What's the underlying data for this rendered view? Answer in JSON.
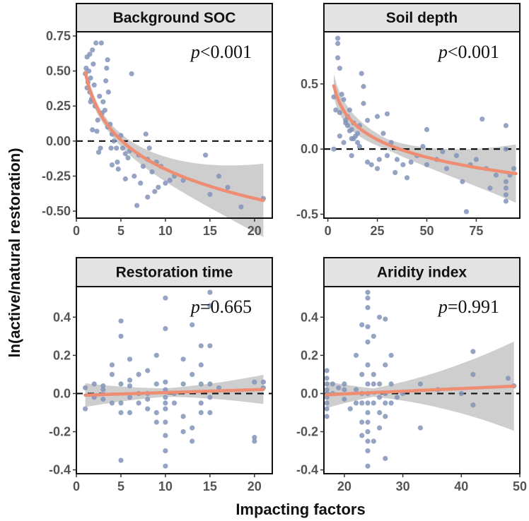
{
  "chart_data": [
    {
      "type": "scatter",
      "title": "Background SOC",
      "annotation": {
        "prefix": "p",
        "text": "<0.001"
      },
      "xlabel": "Impacting factors",
      "ylabel": "ln(active/natural restoration)",
      "xlim": [
        0,
        22
      ],
      "ylim": [
        -0.55,
        0.78
      ],
      "xticks": [
        0,
        5,
        10,
        15,
        20
      ],
      "yticks": [
        -0.5,
        -0.25,
        0,
        0.25,
        0.5,
        0.75
      ],
      "ytick_labels": [
        "-0.50",
        "-0.25",
        "0.00",
        "0.25",
        "0.50",
        "0.75"
      ],
      "reference_line_y": 0,
      "fit": "log",
      "points": [
        [
          1.0,
          0.48
        ],
        [
          1.1,
          0.52
        ],
        [
          1.2,
          0.6
        ],
        [
          1.3,
          0.42
        ],
        [
          1.4,
          0.5
        ],
        [
          1.5,
          0.35
        ],
        [
          1.6,
          0.45
        ],
        [
          1.7,
          0.3
        ],
        [
          1.8,
          0.65
        ],
        [
          1.9,
          0.55
        ],
        [
          2.0,
          0.4
        ],
        [
          2.1,
          0.25
        ],
        [
          1.5,
          0.62
        ],
        [
          2.2,
          0.7
        ],
        [
          2.3,
          0.07
        ],
        [
          1.8,
          0.08
        ],
        [
          2.5,
          -0.08
        ],
        [
          2.8,
          0.7
        ],
        [
          2.6,
          0.32
        ],
        [
          2.7,
          -0.05
        ],
        [
          3.0,
          0.28
        ],
        [
          3.2,
          0.22
        ],
        [
          3.5,
          0.1
        ],
        [
          3.8,
          0.12
        ],
        [
          4.0,
          0.05
        ],
        [
          4.2,
          0.0
        ],
        [
          3.5,
          0.58
        ],
        [
          3.4,
          0.52
        ],
        [
          3.3,
          0.43
        ],
        [
          3.6,
          0.35
        ],
        [
          4.5,
          -0.05
        ],
        [
          4.0,
          -0.17
        ],
        [
          5.0,
          0.04
        ],
        [
          5.2,
          -0.05
        ],
        [
          5.5,
          -0.09
        ],
        [
          5.5,
          -0.27
        ],
        [
          6.0,
          -0.07
        ],
        [
          6.5,
          -0.25
        ],
        [
          6.2,
          0.48
        ],
        [
          6.8,
          -0.46
        ],
        [
          7.0,
          -0.1
        ],
        [
          7.5,
          -0.18
        ],
        [
          7.8,
          0.05
        ],
        [
          8.0,
          -0.13
        ],
        [
          8.2,
          -0.05
        ],
        [
          8.5,
          -0.22
        ],
        [
          8.8,
          -0.36
        ],
        [
          9.0,
          -0.15
        ],
        [
          9.5,
          -0.18
        ],
        [
          10.0,
          -0.3
        ],
        [
          10.5,
          -0.28
        ],
        [
          11.0,
          -0.25
        ],
        [
          12.0,
          -0.28
        ],
        [
          14.5,
          -0.1
        ],
        [
          15.0,
          -0.38
        ],
        [
          16.0,
          -0.25
        ],
        [
          17.0,
          -0.33
        ],
        [
          18.5,
          -0.47
        ],
        [
          21.0,
          -0.41
        ],
        [
          4.6,
          -0.15
        ],
        [
          5.8,
          -0.12
        ],
        [
          7.2,
          -0.3
        ],
        [
          9.2,
          -0.33
        ],
        [
          8.0,
          -0.4
        ],
        [
          2.4,
          0.15
        ],
        [
          1.2,
          0.38
        ],
        [
          1.6,
          0.28
        ],
        [
          2.9,
          0.2
        ],
        [
          3.9,
          -0.05
        ],
        [
          4.7,
          -0.2
        ]
      ],
      "fit_line": {
        "a": 0.49,
        "b": -0.3,
        "x0": 1.0,
        "x1": 21.0
      },
      "band": {
        "c0": 0.035,
        "c1": 0.0045,
        "c2": 0.00045,
        "xc": 3
      }
    },
    {
      "type": "scatter",
      "title": "Soil depth",
      "annotation": {
        "prefix": "p",
        "text": "<0.001"
      },
      "xlabel": "Impacting factors",
      "ylabel": "ln(active/natural restoration)",
      "xlim": [
        -2,
        97
      ],
      "ylim": [
        -0.53,
        0.9
      ],
      "xticks": [
        0,
        25,
        50,
        75
      ],
      "yticks": [
        -0.5,
        0,
        0.5
      ],
      "ytick_labels": [
        "-0.5",
        "0.0",
        "0.5"
      ],
      "reference_line_y": 0,
      "fit": "log",
      "points": [
        [
          3,
          0.4
        ],
        [
          4,
          0.3
        ],
        [
          5,
          0.85
        ],
        [
          5,
          0.81
        ],
        [
          5,
          0.7
        ],
        [
          6,
          0.62
        ],
        [
          7,
          0.42
        ],
        [
          8,
          0.38
        ],
        [
          9,
          0.2
        ],
        [
          10,
          0.25
        ],
        [
          10,
          0.18
        ],
        [
          11,
          0.3
        ],
        [
          12,
          0.15
        ],
        [
          13,
          0.08
        ],
        [
          14,
          0.1
        ],
        [
          15,
          0.12
        ],
        [
          15,
          0.05
        ],
        [
          16,
          0.02
        ],
        [
          17,
          0.58
        ],
        [
          18,
          0.48
        ],
        [
          20,
          0.22
        ],
        [
          22,
          -0.12
        ],
        [
          25,
          0.25
        ],
        [
          25,
          -0.15
        ],
        [
          28,
          0.12
        ],
        [
          30,
          0.27
        ],
        [
          30,
          -0.05
        ],
        [
          32,
          0.05
        ],
        [
          35,
          -0.08
        ],
        [
          38,
          -0.12
        ],
        [
          40,
          -0.22
        ],
        [
          42,
          -0.1
        ],
        [
          45,
          -0.05
        ],
        [
          48,
          0.02
        ],
        [
          50,
          -0.12
        ],
        [
          50,
          0.15
        ],
        [
          55,
          -0.08
        ],
        [
          60,
          -0.15
        ],
        [
          65,
          -0.05
        ],
        [
          70,
          -0.48
        ],
        [
          72,
          -0.12
        ],
        [
          75,
          -0.08
        ],
        [
          78,
          0.23
        ],
        [
          80,
          -0.15
        ],
        [
          82,
          -0.3
        ],
        [
          85,
          -0.2
        ],
        [
          90,
          0.18
        ],
        [
          90,
          0.0
        ],
        [
          90,
          -0.25
        ],
        [
          90,
          -0.3
        ],
        [
          90,
          -0.35
        ],
        [
          90,
          -0.4
        ],
        [
          92,
          -0.2
        ],
        [
          94,
          -0.15
        ],
        [
          3,
          0.0
        ],
        [
          6,
          0.1
        ],
        [
          8,
          0.05
        ],
        [
          12,
          -0.05
        ],
        [
          20,
          -0.1
        ],
        [
          18,
          0.35
        ],
        [
          6,
          0.28
        ],
        [
          9,
          0.22
        ],
        [
          11,
          0.14
        ],
        [
          13,
          0.2
        ],
        [
          16,
          0.18
        ],
        [
          12,
          0.08
        ],
        [
          26,
          -0.08
        ],
        [
          34,
          -0.18
        ],
        [
          58,
          -0.02
        ],
        [
          68,
          -0.25
        ]
      ],
      "fit_line": {
        "a": 0.7,
        "b": -0.195,
        "x0": 3,
        "x1": 95
      },
      "band": {
        "c0": 0.04,
        "c1": 0.0012,
        "c2": 2.5e-05,
        "xc": 30
      }
    },
    {
      "type": "scatter",
      "title": "Restoration time",
      "annotation": {
        "prefix": "p",
        "text": "=0.665"
      },
      "xlabel": "Impacting factors",
      "ylabel": "ln(active/natural restoration)",
      "xlim": [
        0,
        22
      ],
      "ylim": [
        -0.42,
        0.56
      ],
      "xticks": [
        0,
        5,
        10,
        15,
        20
      ],
      "yticks": [
        -0.4,
        -0.2,
        0,
        0.2,
        0.4
      ],
      "ytick_labels": [
        "-0.4",
        "-0.2",
        "0.0",
        "0.2",
        "0.4"
      ],
      "reference_line_y": 0,
      "fit": "linear",
      "points": [
        [
          1,
          0.03
        ],
        [
          1,
          -0.08
        ],
        [
          2,
          -0.02
        ],
        [
          2,
          0.05
        ],
        [
          3,
          0.04
        ],
        [
          3,
          -0.03
        ],
        [
          4,
          0.1
        ],
        [
          4,
          0.15
        ],
        [
          4,
          -0.05
        ],
        [
          5,
          0.38
        ],
        [
          5,
          0.3
        ],
        [
          5,
          -0.35
        ],
        [
          5,
          0.05
        ],
        [
          5,
          -0.05
        ],
        [
          5,
          -0.1
        ],
        [
          6,
          0.07
        ],
        [
          6,
          -0.02
        ],
        [
          6,
          -0.1
        ],
        [
          6,
          0.18
        ],
        [
          7,
          0.1
        ],
        [
          7,
          0.0
        ],
        [
          7,
          -0.05
        ],
        [
          8,
          0.12
        ],
        [
          8,
          -0.03
        ],
        [
          8,
          -0.08
        ],
        [
          9,
          0.05
        ],
        [
          9,
          -0.1
        ],
        [
          9,
          -0.15
        ],
        [
          10,
          0.5
        ],
        [
          10,
          0.34
        ],
        [
          10,
          0.06
        ],
        [
          10,
          0.02
        ],
        [
          10,
          -0.02
        ],
        [
          10,
          -0.05
        ],
        [
          10,
          -0.08
        ],
        [
          10,
          -0.15
        ],
        [
          10,
          -0.22
        ],
        [
          10,
          -0.3
        ],
        [
          10,
          -0.38
        ],
        [
          11,
          0.0
        ],
        [
          11,
          -0.05
        ],
        [
          12,
          0.18
        ],
        [
          12,
          0.05
        ],
        [
          12,
          -0.2
        ],
        [
          13,
          0.36
        ],
        [
          13,
          0.1
        ],
        [
          13,
          -0.18
        ],
        [
          14,
          0.05
        ],
        [
          14,
          -0.05
        ],
        [
          14,
          -0.1
        ],
        [
          14,
          0.15
        ],
        [
          15,
          0.53
        ],
        [
          15,
          0.46
        ],
        [
          15,
          0.25
        ],
        [
          15,
          0.05
        ],
        [
          15,
          -0.02
        ],
        [
          15,
          -0.1
        ],
        [
          16,
          0.03
        ],
        [
          20,
          0.06
        ],
        [
          20,
          -0.23
        ],
        [
          20,
          -0.25
        ],
        [
          21,
          0.03
        ],
        [
          21,
          0.06
        ],
        [
          3,
          0.02
        ],
        [
          6,
          0.04
        ],
        [
          8,
          0.0
        ],
        [
          12,
          -0.12
        ],
        [
          13,
          -0.25
        ],
        [
          14,
          0.25
        ],
        [
          9,
          0.2
        ]
      ],
      "fit_line": {
        "a": -0.01,
        "b": 0.0015,
        "x0": 1,
        "x1": 21
      },
      "band": {
        "c0": 0.022,
        "c1": 0.0022,
        "c2": 0.00025,
        "xc": 10
      }
    },
    {
      "type": "scatter",
      "title": "Aridity index",
      "annotation": {
        "prefix": "p",
        "text": "=0.991"
      },
      "xlabel": "Impacting factors",
      "ylabel": "ln(active/natural restoration)",
      "xlim": [
        16.5,
        50
      ],
      "ylim": [
        -0.42,
        0.56
      ],
      "xticks": [
        20,
        30,
        40,
        50
      ],
      "yticks": [
        -0.4,
        -0.2,
        0,
        0.2,
        0.4
      ],
      "ytick_labels": [
        "-0.4",
        "-0.2",
        "0.0",
        "0.2",
        "0.4"
      ],
      "reference_line_y": 0,
      "fit": "linear",
      "points": [
        [
          17,
          0.12
        ],
        [
          17,
          0.08
        ],
        [
          17,
          0.05
        ],
        [
          17,
          0.02
        ],
        [
          17,
          -0.02
        ],
        [
          17,
          -0.05
        ],
        [
          17,
          -0.08
        ],
        [
          17,
          -0.12
        ],
        [
          18,
          0.05
        ],
        [
          18,
          0.0
        ],
        [
          19,
          0.03
        ],
        [
          20,
          -0.03
        ],
        [
          20,
          0.05
        ],
        [
          21,
          -0.08
        ],
        [
          22,
          0.2
        ],
        [
          22,
          -0.05
        ],
        [
          23,
          0.36
        ],
        [
          23,
          0.1
        ],
        [
          23,
          -0.05
        ],
        [
          23,
          -0.15
        ],
        [
          23,
          -0.22
        ],
        [
          24,
          0.53
        ],
        [
          24,
          0.5
        ],
        [
          24,
          0.45
        ],
        [
          24,
          0.35
        ],
        [
          24,
          0.27
        ],
        [
          24,
          0.15
        ],
        [
          24,
          0.05
        ],
        [
          24,
          0.0
        ],
        [
          24,
          -0.05
        ],
        [
          24,
          -0.1
        ],
        [
          24,
          -0.15
        ],
        [
          24,
          -0.2
        ],
        [
          24,
          -0.25
        ],
        [
          24,
          -0.3
        ],
        [
          24,
          -0.38
        ],
        [
          25,
          0.3
        ],
        [
          25,
          0.1
        ],
        [
          25,
          -0.05
        ],
        [
          25,
          -0.25
        ],
        [
          26,
          0.05
        ],
        [
          26,
          -0.1
        ],
        [
          26,
          0.4
        ],
        [
          27,
          0.39
        ],
        [
          27,
          0.15
        ],
        [
          27,
          0.0
        ],
        [
          27,
          -0.05
        ],
        [
          27,
          -0.12
        ],
        [
          27,
          -0.34
        ],
        [
          28,
          0.05
        ],
        [
          28,
          -0.05
        ],
        [
          29,
          -0.02
        ],
        [
          30,
          0.0
        ],
        [
          33,
          0.05
        ],
        [
          33,
          -0.18
        ],
        [
          36,
          0.02
        ],
        [
          40,
          0.0
        ],
        [
          42,
          0.22
        ],
        [
          42,
          0.1
        ],
        [
          42,
          -0.06
        ],
        [
          48,
          0.08
        ],
        [
          49,
          0.04
        ],
        [
          22,
          0.02
        ],
        [
          26,
          -0.02
        ],
        [
          17,
          0.0
        ],
        [
          20,
          0.02
        ],
        [
          25,
          0.05
        ],
        [
          26,
          -0.18
        ],
        [
          23,
          0.0
        ],
        [
          28,
          0.2
        ]
      ],
      "fit_line": {
        "a": -0.03,
        "b": 0.0014,
        "x0": 17,
        "x1": 49
      },
      "band": {
        "c0": 0.022,
        "c1": 0.0045,
        "c2": 0.00018,
        "xc": 25
      }
    }
  ],
  "shared": {
    "xlabel": "Impacting factors",
    "ylabel": "ln(active/natural restoration)"
  },
  "colors": {
    "point": "#8394b8",
    "fit": "#ef8d72",
    "band": "#bdbdbd",
    "strip_bg": "#e3e3e3",
    "frame": "#111111",
    "ref_line": "#111111"
  }
}
